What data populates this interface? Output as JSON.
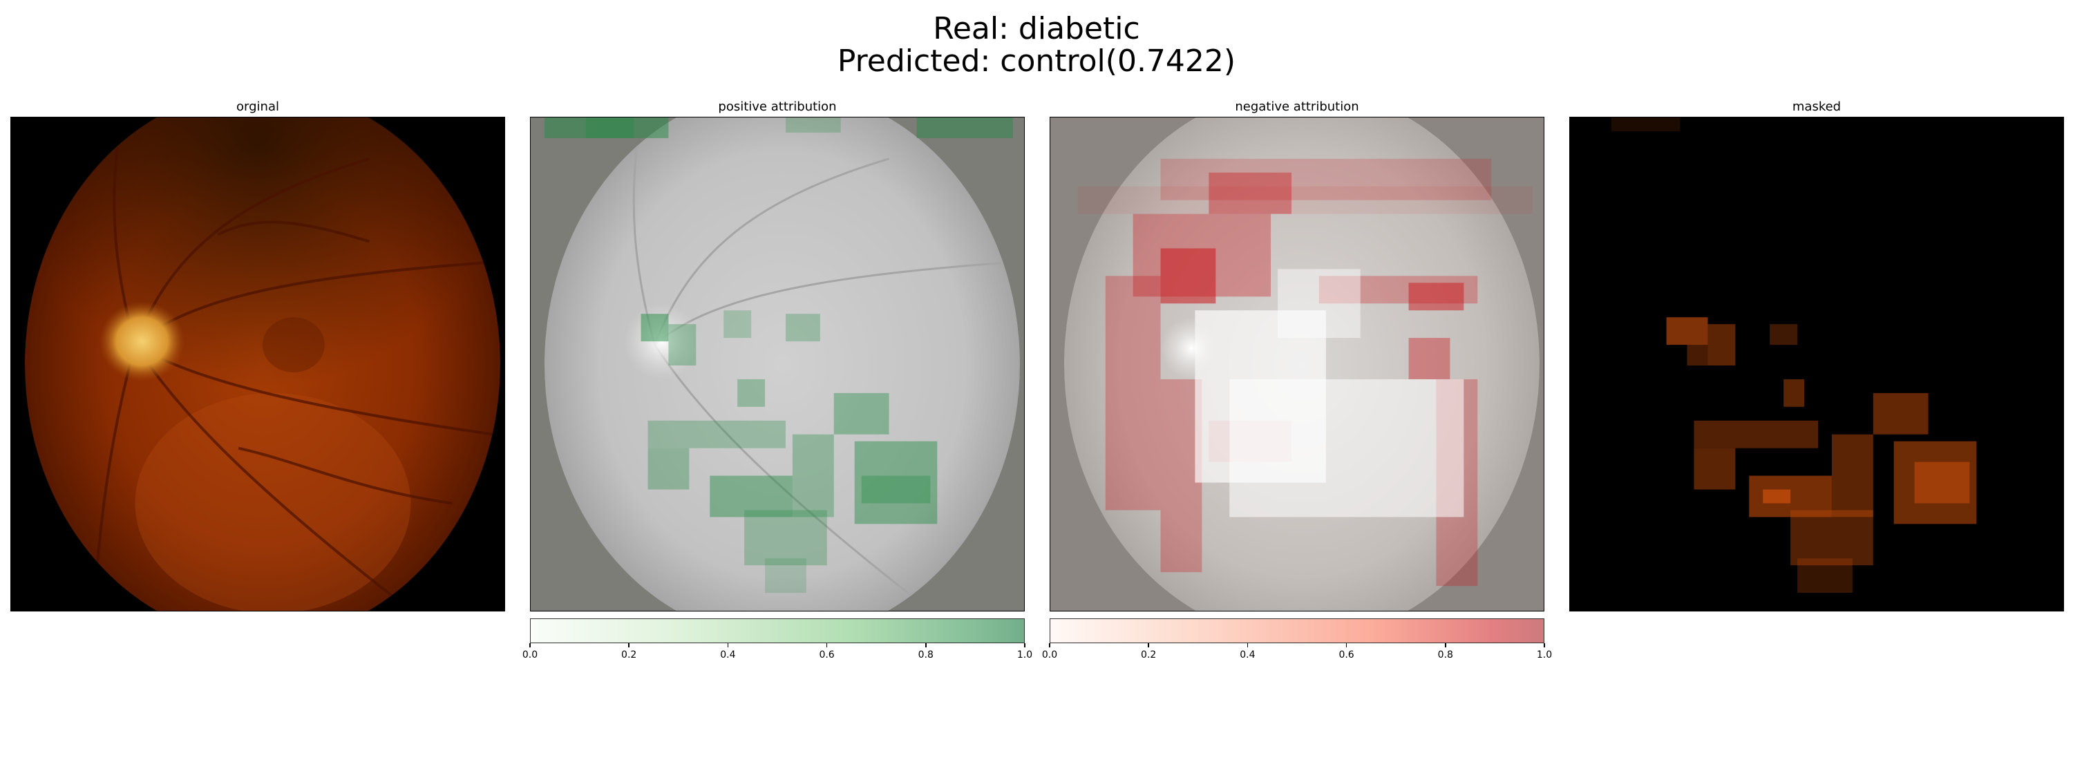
{
  "figure": {
    "title_line1": "Real: diabetic",
    "title_line2": "Predicted: control(0.7422)"
  },
  "panels": [
    {
      "title": "orginal"
    },
    {
      "title": "positive attribution"
    },
    {
      "title": "negative attribution"
    },
    {
      "title": "masked"
    }
  ],
  "colorbars": {
    "positive": {
      "colormap": "Greens",
      "range": [
        0.0,
        1.0
      ],
      "ticks": [
        "0.0",
        "0.2",
        "0.4",
        "0.6",
        "0.8",
        "1.0"
      ]
    },
    "negative": {
      "colormap": "Reds",
      "range": [
        0.0,
        1.0
      ],
      "ticks": [
        "0.0",
        "0.2",
        "0.4",
        "0.6",
        "0.8",
        "1.0"
      ]
    }
  },
  "colors": {
    "fundus_dark": "#3a0a00",
    "fundus_mid": "#8c2a00",
    "fundus_light": "#c45a10",
    "optic_disc": "#f0c050",
    "positive_accent": "#238b45",
    "negative_accent": "#cb181d"
  }
}
